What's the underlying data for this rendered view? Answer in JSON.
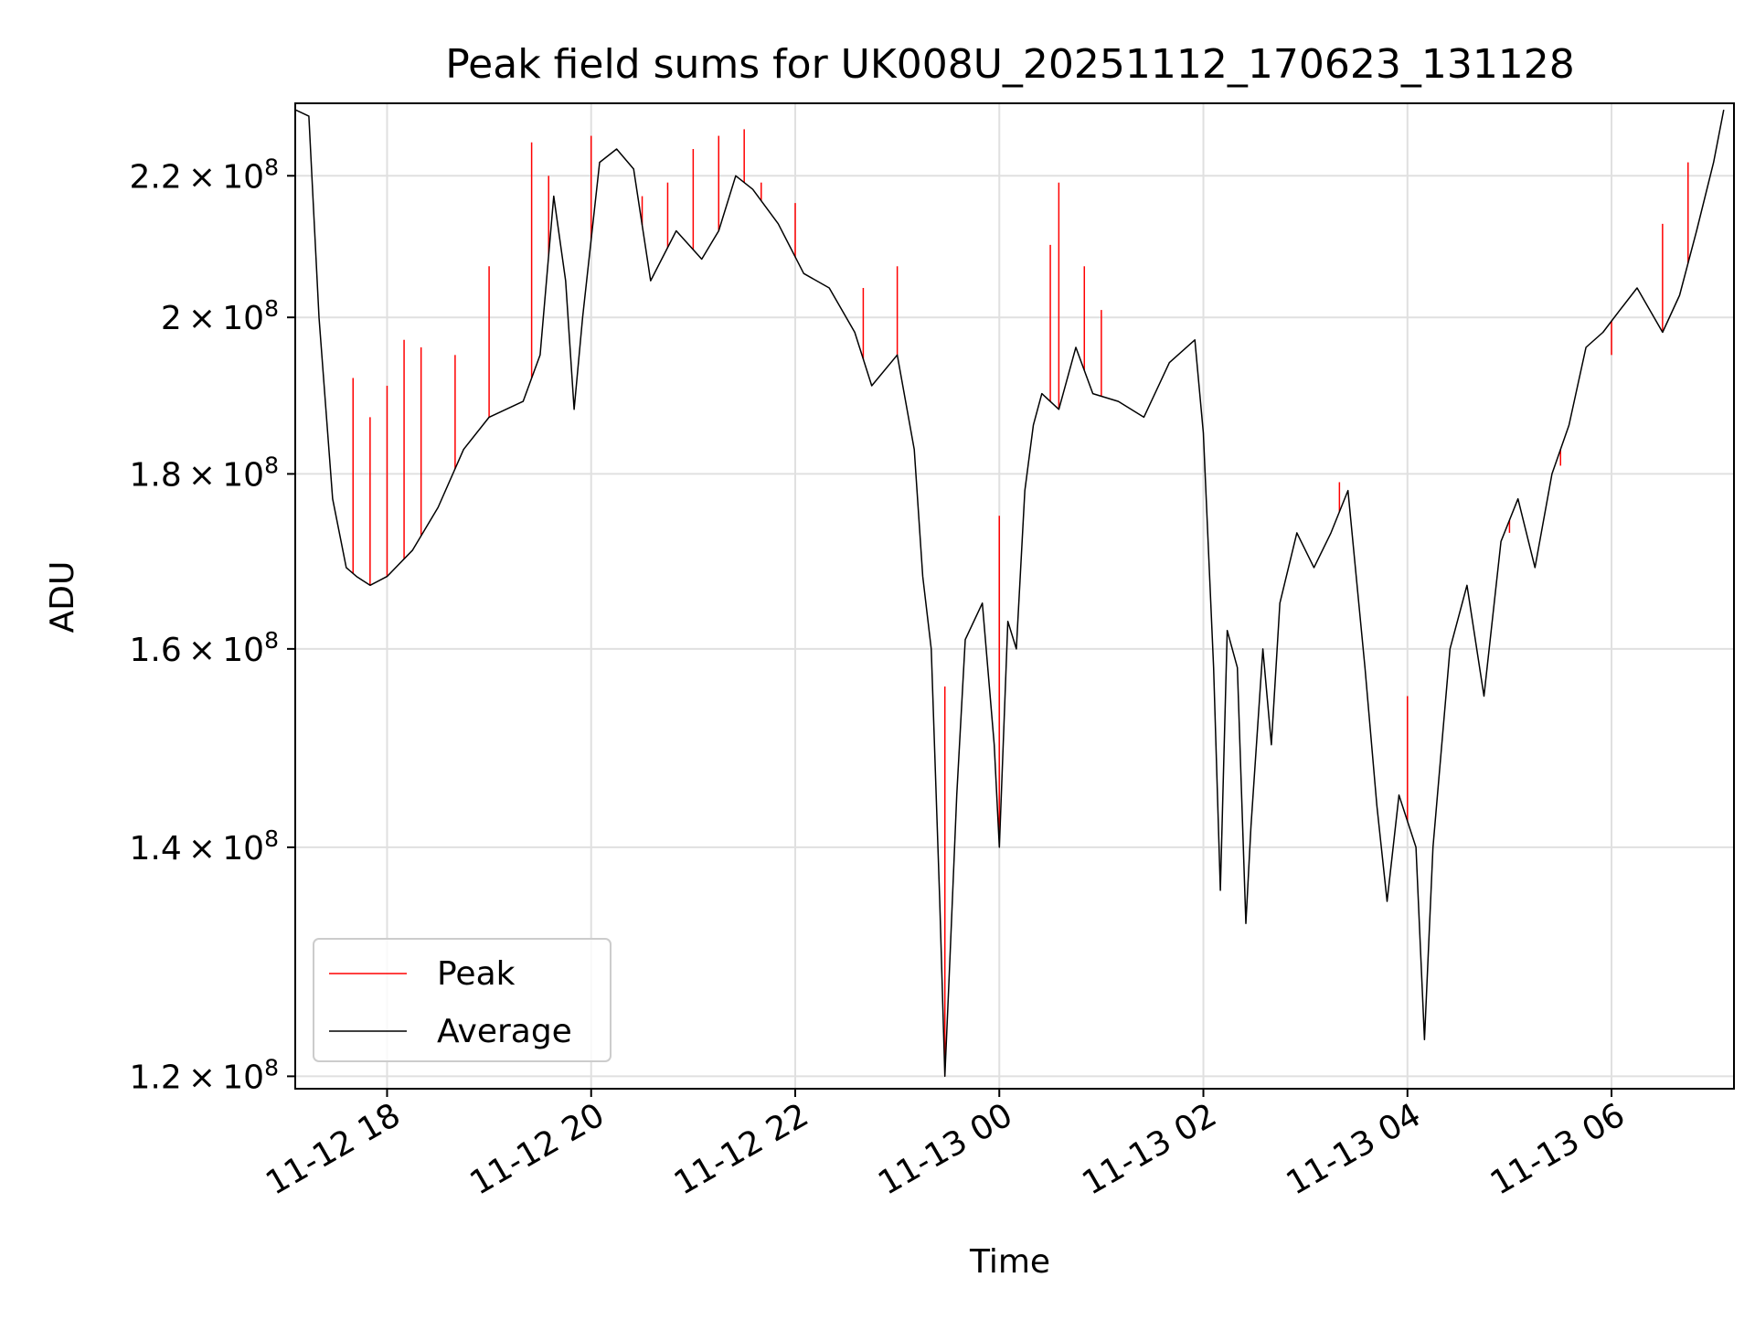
{
  "chart_data": {
    "type": "line",
    "title": "Peak field sums for UK008U_20251112_170623_131128",
    "xlabel": "Time",
    "ylabel": "ADU",
    "y_scale": "log",
    "ylim": [
      119000000,
      231000000
    ],
    "xlim": [
      "2025-11-12 17:06",
      "2025-11-13 07:12"
    ],
    "grid": true,
    "legend_position": "lower-left",
    "x_ticks": [
      {
        "value": "2025-11-12 18:00",
        "label": "11-12 18"
      },
      {
        "value": "2025-11-12 20:00",
        "label": "11-12 20"
      },
      {
        "value": "2025-11-12 22:00",
        "label": "11-12 22"
      },
      {
        "value": "2025-11-13 00:00",
        "label": "11-13 00"
      },
      {
        "value": "2025-11-13 02:00",
        "label": "11-13 02"
      },
      {
        "value": "2025-11-13 04:00",
        "label": "11-13 04"
      },
      {
        "value": "2025-11-13 06:00",
        "label": "11-13 06"
      }
    ],
    "y_ticks": [
      {
        "value": 120000000,
        "mantissa": "1.2",
        "base": "10",
        "exp": "8"
      },
      {
        "value": 140000000,
        "mantissa": "1.4",
        "base": "10",
        "exp": "8"
      },
      {
        "value": 160000000,
        "mantissa": "1.6",
        "base": "10",
        "exp": "8"
      },
      {
        "value": 180000000,
        "mantissa": "1.8",
        "base": "10",
        "exp": "8"
      },
      {
        "value": 200000000,
        "mantissa": "2",
        "base": "10",
        "exp": "8"
      },
      {
        "value": 220000000,
        "mantissa": "2.2",
        "base": "10",
        "exp": "8"
      }
    ],
    "series": [
      {
        "name": "Peak",
        "color": "#ff0000",
        "x": [
          "2025-11-12 17:40",
          "2025-11-12 17:50",
          "2025-11-12 18:00",
          "2025-11-12 18:10",
          "2025-11-12 18:20",
          "2025-11-12 18:40",
          "2025-11-12 19:00",
          "2025-11-12 19:25",
          "2025-11-12 19:35",
          "2025-11-12 20:00",
          "2025-11-12 20:30",
          "2025-11-12 20:45",
          "2025-11-12 21:00",
          "2025-11-12 21:15",
          "2025-11-12 21:30",
          "2025-11-12 21:40",
          "2025-11-12 22:00",
          "2025-11-12 22:40",
          "2025-11-12 23:00",
          "2025-11-12 23:28",
          "2025-11-13 00:00",
          "2025-11-13 00:30",
          "2025-11-13 00:35",
          "2025-11-13 00:50",
          "2025-11-13 01:00",
          "2025-11-13 03:20",
          "2025-11-13 04:00",
          "2025-11-13 05:00",
          "2025-11-13 05:30",
          "2025-11-13 06:00",
          "2025-11-13 06:30",
          "2025-11-13 06:45"
        ],
        "values": [
          192000000,
          187000000,
          191000000,
          197000000,
          196000000,
          195000000,
          207000000,
          225000000,
          220000000,
          226000000,
          217000000,
          219000000,
          224000000,
          226000000,
          227000000,
          219000000,
          216000000,
          204000000,
          207000000,
          156000000,
          175000000,
          210000000,
          219000000,
          207000000,
          201000000,
          179000000,
          155000000,
          173000000,
          181000000,
          195000000,
          213000000,
          222000000
        ]
      },
      {
        "name": "Average",
        "color": "#000000",
        "x": [
          "2025-11-12 17:06",
          "2025-11-12 17:14",
          "2025-11-12 17:20",
          "2025-11-12 17:28",
          "2025-11-12 17:36",
          "2025-11-12 17:42",
          "2025-11-12 17:50",
          "2025-11-12 18:00",
          "2025-11-12 18:15",
          "2025-11-12 18:30",
          "2025-11-12 18:45",
          "2025-11-12 19:00",
          "2025-11-12 19:20",
          "2025-11-12 19:30",
          "2025-11-12 19:38",
          "2025-11-12 19:45",
          "2025-11-12 19:50",
          "2025-11-12 19:55",
          "2025-11-12 20:05",
          "2025-11-12 20:15",
          "2025-11-12 20:25",
          "2025-11-12 20:35",
          "2025-11-12 20:50",
          "2025-11-12 21:05",
          "2025-11-12 21:15",
          "2025-11-12 21:25",
          "2025-11-12 21:35",
          "2025-11-12 21:50",
          "2025-11-12 22:05",
          "2025-11-12 22:20",
          "2025-11-12 22:35",
          "2025-11-12 22:45",
          "2025-11-12 23:00",
          "2025-11-12 23:10",
          "2025-11-12 23:15",
          "2025-11-12 23:20",
          "2025-11-12 23:25",
          "2025-11-12 23:28",
          "2025-11-12 23:31",
          "2025-11-12 23:35",
          "2025-11-12 23:40",
          "2025-11-12 23:50",
          "2025-11-12 23:57",
          "2025-11-13 00:00",
          "2025-11-13 00:05",
          "2025-11-13 00:10",
          "2025-11-13 00:15",
          "2025-11-13 00:20",
          "2025-11-13 00:25",
          "2025-11-13 00:35",
          "2025-11-13 00:45",
          "2025-11-13 00:55",
          "2025-11-13 01:10",
          "2025-11-13 01:25",
          "2025-11-13 01:40",
          "2025-11-13 01:55",
          "2025-11-13 02:00",
          "2025-11-13 02:06",
          "2025-11-13 02:10",
          "2025-11-13 02:14",
          "2025-11-13 02:20",
          "2025-11-13 02:25",
          "2025-11-13 02:28",
          "2025-11-13 02:35",
          "2025-11-13 02:40",
          "2025-11-13 02:45",
          "2025-11-13 02:55",
          "2025-11-13 03:05",
          "2025-11-13 03:15",
          "2025-11-13 03:25",
          "2025-11-13 03:35",
          "2025-11-13 03:42",
          "2025-11-13 03:48",
          "2025-11-13 03:55",
          "2025-11-13 04:05",
          "2025-11-13 04:10",
          "2025-11-13 04:15",
          "2025-11-13 04:25",
          "2025-11-13 04:35",
          "2025-11-13 04:45",
          "2025-11-13 04:55",
          "2025-11-13 05:05",
          "2025-11-13 05:15",
          "2025-11-13 05:25",
          "2025-11-13 05:35",
          "2025-11-13 05:45",
          "2025-11-13 05:55",
          "2025-11-13 06:05",
          "2025-11-13 06:15",
          "2025-11-13 06:30",
          "2025-11-13 06:40",
          "2025-11-13 06:50",
          "2025-11-13 07:00",
          "2025-11-13 07:06"
        ],
        "values": [
          230000000,
          229000000,
          200000000,
          177000000,
          169000000,
          168000000,
          167000000,
          168000000,
          171000000,
          176000000,
          183000000,
          187000000,
          189000000,
          195000000,
          217000000,
          205000000,
          188000000,
          200000000,
          222000000,
          224000000,
          221000000,
          205000000,
          212000000,
          208000000,
          212000000,
          220000000,
          218000000,
          213000000,
          206000000,
          204000000,
          198000000,
          191000000,
          195000000,
          183000000,
          168000000,
          160000000,
          135000000,
          120000000,
          130000000,
          145000000,
          161000000,
          165000000,
          150000000,
          140000000,
          163000000,
          160000000,
          178000000,
          186000000,
          190000000,
          188000000,
          196000000,
          190000000,
          189000000,
          187000000,
          194000000,
          197000000,
          185000000,
          158000000,
          136000000,
          162000000,
          158000000,
          133000000,
          142000000,
          160000000,
          150000000,
          165000000,
          173000000,
          169000000,
          173000000,
          178000000,
          158000000,
          144000000,
          135000000,
          145000000,
          140000000,
          123000000,
          140000000,
          160000000,
          167000000,
          155000000,
          172000000,
          177000000,
          169000000,
          180000000,
          186000000,
          196000000,
          198000000,
          201000000,
          204000000,
          198000000,
          203000000,
          212000000,
          222000000,
          230000000
        ]
      }
    ]
  }
}
